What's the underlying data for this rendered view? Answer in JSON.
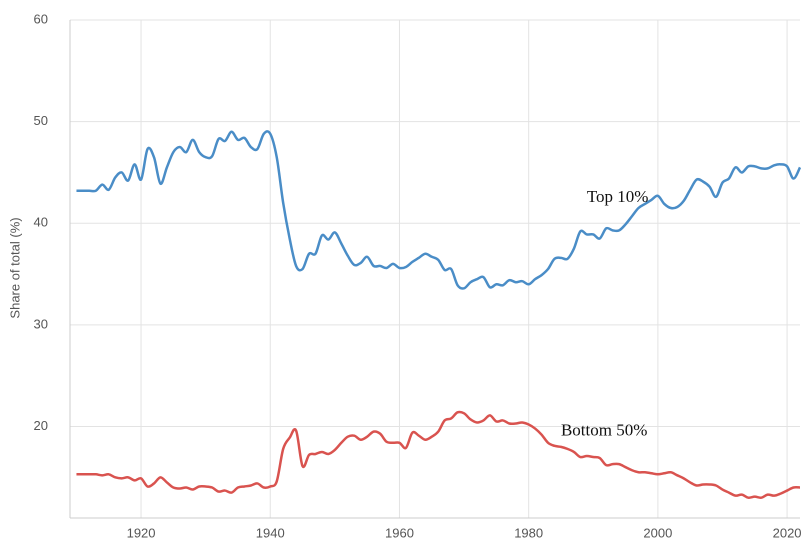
{
  "chart_data": {
    "type": "line",
    "y_label": "Share of total (%)",
    "x": [
      1910,
      1911,
      1912,
      1913,
      1914,
      1915,
      1916,
      1917,
      1918,
      1919,
      1920,
      1921,
      1922,
      1923,
      1924,
      1925,
      1926,
      1927,
      1928,
      1929,
      1930,
      1931,
      1932,
      1933,
      1934,
      1935,
      1936,
      1937,
      1938,
      1939,
      1940,
      1941,
      1942,
      1943,
      1944,
      1945,
      1946,
      1947,
      1948,
      1949,
      1950,
      1951,
      1952,
      1953,
      1954,
      1955,
      1956,
      1957,
      1958,
      1959,
      1960,
      1961,
      1962,
      1963,
      1964,
      1965,
      1966,
      1967,
      1968,
      1969,
      1970,
      1971,
      1972,
      1973,
      1974,
      1975,
      1976,
      1977,
      1978,
      1979,
      1980,
      1981,
      1982,
      1983,
      1984,
      1985,
      1986,
      1987,
      1988,
      1989,
      1990,
      1991,
      1992,
      1993,
      1994,
      1995,
      1996,
      1997,
      1998,
      1999,
      2000,
      2001,
      2002,
      2003,
      2004,
      2005,
      2006,
      2007,
      2008,
      2009,
      2010,
      2011,
      2012,
      2013,
      2014,
      2015,
      2016,
      2017,
      2018,
      2019,
      2020,
      2021,
      2022
    ],
    "series": [
      {
        "name": "Top 10%",
        "color": "#4a8dc7",
        "values": [
          43.2,
          43.2,
          43.2,
          43.2,
          43.8,
          43.3,
          44.5,
          45.0,
          44.2,
          45.8,
          44.3,
          47.3,
          46.5,
          43.9,
          45.5,
          47.0,
          47.5,
          47.0,
          48.2,
          47.0,
          46.5,
          46.6,
          48.3,
          48.1,
          49.0,
          48.2,
          48.4,
          47.5,
          47.3,
          48.8,
          48.8,
          46.5,
          42.0,
          38.5,
          35.8,
          35.5,
          37.0,
          37.0,
          38.8,
          38.4,
          39.1,
          38.0,
          36.8,
          35.9,
          36.1,
          36.7,
          35.8,
          35.8,
          35.6,
          36.0,
          35.6,
          35.7,
          36.2,
          36.6,
          37.0,
          36.7,
          36.4,
          35.4,
          35.5,
          33.9,
          33.6,
          34.2,
          34.5,
          34.7,
          33.7,
          34.0,
          33.9,
          34.4,
          34.2,
          34.3,
          34.0,
          34.5,
          34.9,
          35.5,
          36.5,
          36.6,
          36.5,
          37.5,
          39.2,
          38.9,
          38.9,
          38.5,
          39.5,
          39.3,
          39.3,
          39.9,
          40.7,
          41.5,
          41.9,
          42.3,
          42.7,
          41.9,
          41.5,
          41.6,
          42.2,
          43.3,
          44.3,
          44.1,
          43.6,
          42.6,
          44.0,
          44.4,
          45.5,
          45.0,
          45.6,
          45.6,
          45.4,
          45.4,
          45.7,
          45.8,
          45.6,
          44.4,
          45.5
        ]
      },
      {
        "name": "Bottom 50%",
        "color": "#d9534f",
        "values": [
          15.3,
          15.3,
          15.3,
          15.3,
          15.2,
          15.3,
          15.0,
          14.9,
          15.0,
          14.7,
          14.9,
          14.1,
          14.4,
          15.0,
          14.5,
          14.0,
          13.9,
          14.0,
          13.8,
          14.1,
          14.1,
          14.0,
          13.6,
          13.7,
          13.5,
          14.0,
          14.1,
          14.2,
          14.4,
          14.0,
          14.1,
          14.6,
          17.8,
          18.9,
          19.6,
          16.1,
          17.2,
          17.3,
          17.5,
          17.3,
          17.7,
          18.4,
          19.0,
          19.1,
          18.7,
          19.0,
          19.5,
          19.3,
          18.5,
          18.4,
          18.4,
          17.9,
          19.4,
          19.1,
          18.7,
          19.0,
          19.5,
          20.6,
          20.8,
          21.4,
          21.3,
          20.7,
          20.4,
          20.6,
          21.1,
          20.5,
          20.6,
          20.3,
          20.3,
          20.4,
          20.2,
          19.8,
          19.2,
          18.4,
          18.1,
          18.0,
          17.8,
          17.5,
          17.0,
          17.1,
          17.0,
          16.9,
          16.2,
          16.3,
          16.3,
          16.0,
          15.7,
          15.5,
          15.5,
          15.4,
          15.3,
          15.4,
          15.5,
          15.2,
          14.9,
          14.5,
          14.2,
          14.3,
          14.3,
          14.2,
          13.8,
          13.5,
          13.2,
          13.3,
          13.0,
          13.1,
          13.0,
          13.3,
          13.2,
          13.4,
          13.7,
          14.0,
          14.0
        ]
      }
    ],
    "xlim": [
      1909,
      2022
    ],
    "xticks": [
      1920,
      1940,
      1960,
      1980,
      2000,
      2020
    ],
    "ylim": [
      11,
      60
    ],
    "yticks": [
      20,
      30,
      40,
      50,
      60
    ],
    "grid": true,
    "annotations": [
      {
        "series": 0,
        "x": 1989,
        "y": 42.5
      },
      {
        "series": 1,
        "x": 1985,
        "y": 19.5
      }
    ]
  }
}
